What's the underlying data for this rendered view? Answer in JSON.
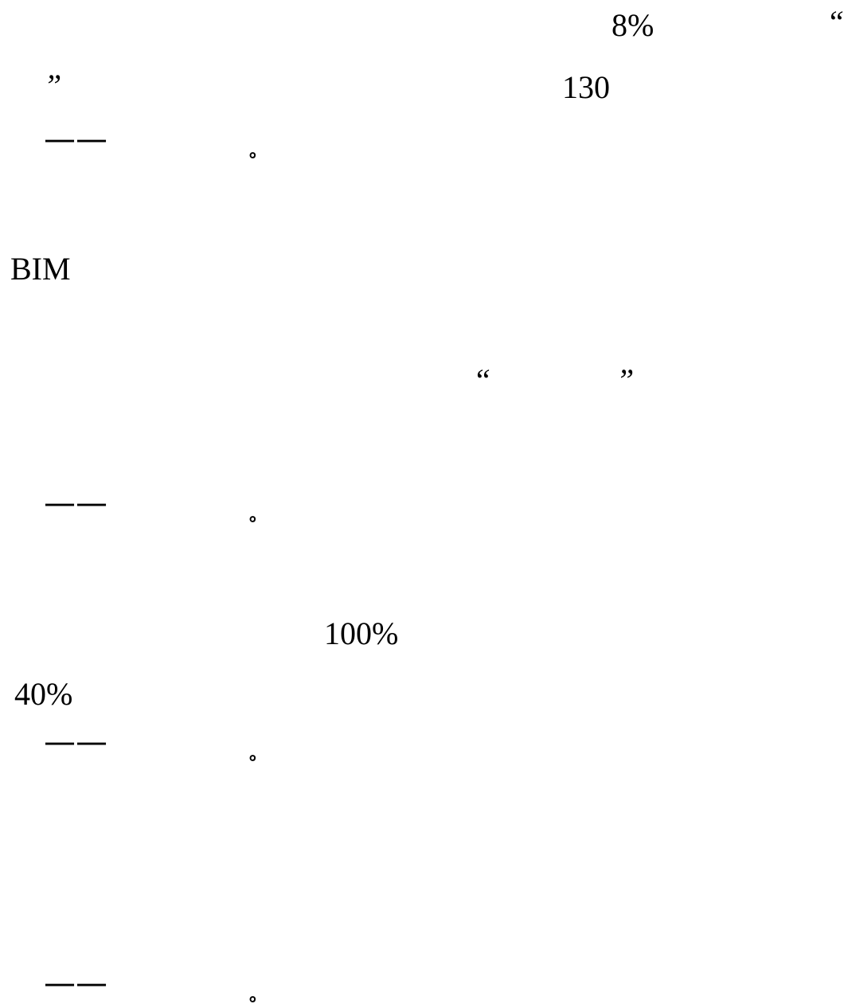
{
  "page": {
    "line1": {
      "percent": "8%",
      "open_quote": "“"
    },
    "line2": {
      "close_quote": "”",
      "number": "130"
    },
    "line3": {
      "dash": "——",
      "period": "。"
    },
    "line4": {
      "acronym": "BIM"
    },
    "line5": {
      "open_quote": "“",
      "close_quote": "”"
    },
    "line6": {
      "dash": "——",
      "period": "。"
    },
    "line7": {
      "percent": "100%"
    },
    "line8": {
      "percent": "40%"
    },
    "line9": {
      "dash": "——",
      "period": "。"
    },
    "line10": {
      "dash": "——",
      "period": "。"
    }
  }
}
